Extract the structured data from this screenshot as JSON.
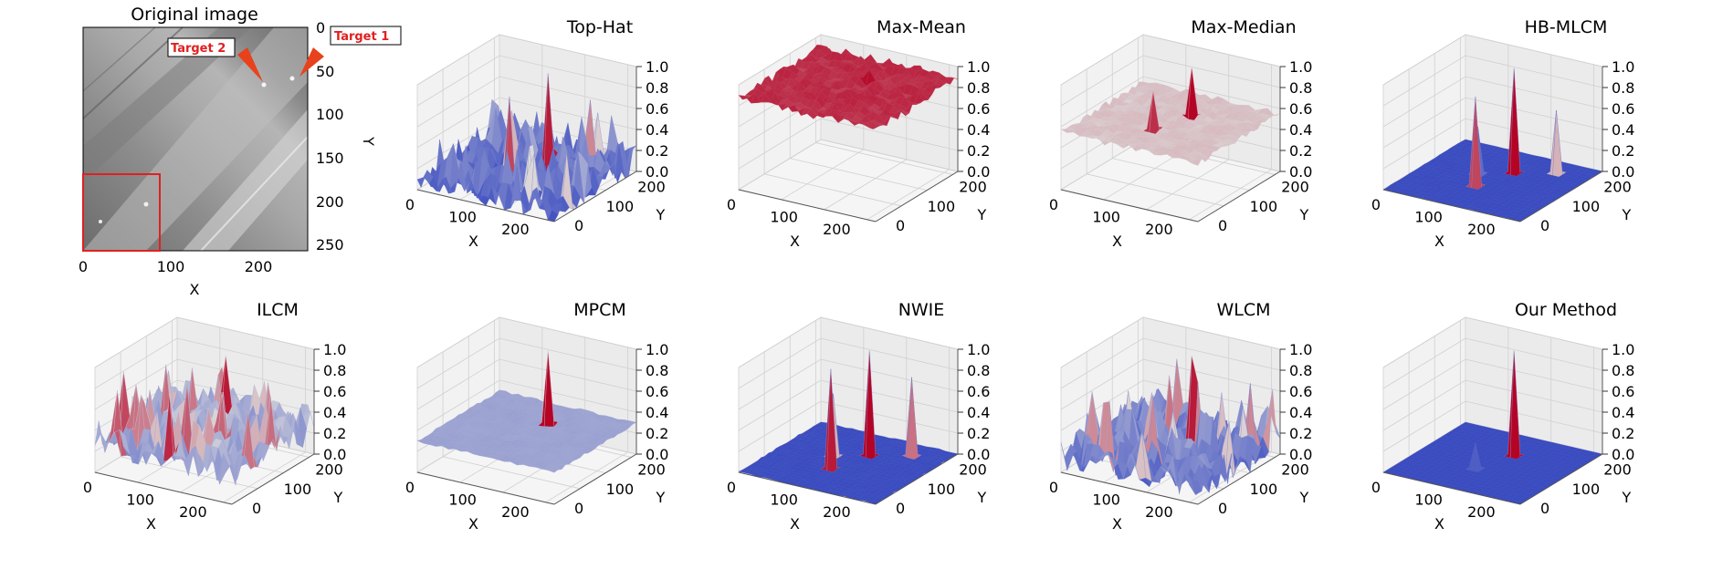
{
  "figure": {
    "original": {
      "title": "Original image",
      "xlabel": "X",
      "ylabel": "Y",
      "xticks": [
        "0",
        "100",
        "200"
      ],
      "yticks": [
        "0",
        "50",
        "100",
        "150",
        "200",
        "250"
      ],
      "targets": [
        "Target 1",
        "Target 2"
      ],
      "colors": {
        "box": "#e02020",
        "arrow": "#e8421c"
      }
    },
    "subplot_xlabel": "X",
    "subplot_ylabel": "Y",
    "xticks": [
      "0",
      "100",
      "200"
    ],
    "yticks": [
      "0",
      "100",
      "200"
    ],
    "zticks": [
      "0.0",
      "0.2",
      "0.4",
      "0.6",
      "0.8",
      "1.0"
    ],
    "colormap": "coolwarm",
    "colors": {
      "low": "#3b4cc0",
      "mid": "#dddddd",
      "high": "#b40426"
    }
  },
  "chart_data": [
    {
      "type": "surface3d",
      "title": "Top-Hat",
      "zlim": [
        0,
        1
      ],
      "base": 0.1,
      "noise": 0.25,
      "peaks": [
        0.95,
        0.85,
        0.7,
        0.6
      ]
    },
    {
      "type": "surface3d",
      "title": "Max-Mean",
      "zlim": [
        0,
        1
      ],
      "base": 0.88,
      "noise": 0.08,
      "peaks": [
        0.98,
        0.9
      ]
    },
    {
      "type": "surface3d",
      "title": "Max-Median",
      "zlim": [
        0,
        1
      ],
      "base": 0.55,
      "noise": 0.05,
      "peaks": [
        1.0,
        0.9
      ]
    },
    {
      "type": "surface3d",
      "title": "HB-MLCM",
      "zlim": [
        0,
        1
      ],
      "base": 0.0,
      "noise": 0.01,
      "peaks": [
        1.0,
        0.85,
        0.6,
        0.45
      ]
    },
    {
      "type": "surface3d",
      "title": "ILCM",
      "zlim": [
        0,
        1
      ],
      "base": 0.3,
      "noise": 0.3,
      "peaks": [
        0.95,
        0.8,
        0.7
      ]
    },
    {
      "type": "surface3d",
      "title": "MPCM",
      "zlim": [
        0,
        1
      ],
      "base": 0.3,
      "noise": 0.02,
      "peaks": [
        1.0,
        0.35
      ]
    },
    {
      "type": "surface3d",
      "title": "NWIE",
      "zlim": [
        0,
        1
      ],
      "base": 0.0,
      "noise": 0.02,
      "peaks": [
        1.0,
        0.95,
        0.75,
        0.6
      ]
    },
    {
      "type": "surface3d",
      "title": "WLCM",
      "zlim": [
        0,
        1
      ],
      "base": 0.15,
      "noise": 0.3,
      "peaks": [
        0.95,
        0.7
      ]
    },
    {
      "type": "surface3d",
      "title": "Our Method",
      "zlim": [
        0,
        1
      ],
      "base": 0.0,
      "noise": 0.0,
      "peaks": [
        1.0,
        0.25
      ]
    }
  ]
}
